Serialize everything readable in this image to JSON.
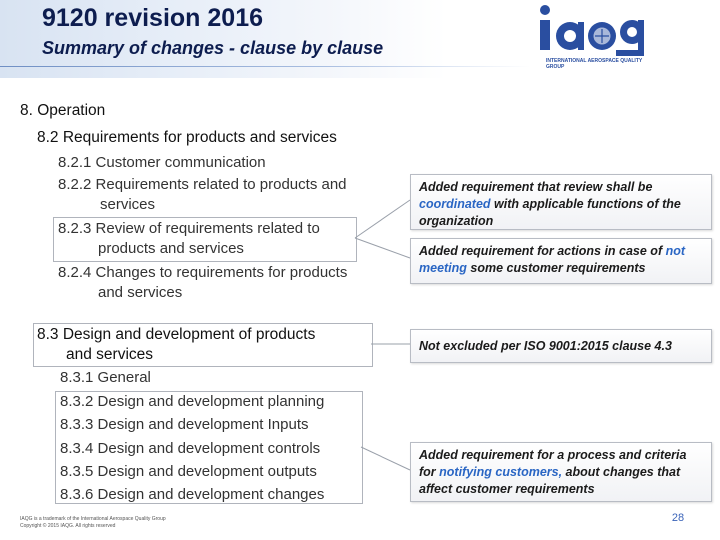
{
  "header": {
    "title": "9120 revision 2016",
    "subtitle": "Summary of changes - clause by clause"
  },
  "logo": {
    "text": "iaqg",
    "caption": "INTERNATIONAL AEROSPACE QUALITY GROUP"
  },
  "content": {
    "section": "8. Operation",
    "clause_8_2": {
      "heading": "8.2 Requirements for products and services",
      "items": [
        "8.2.1 Customer communication",
        "8.2.2 Requirements related to products and",
        "services",
        "8.2.3 Review of requirements related to",
        "products and services",
        "8.2.4 Changes to requirements for products",
        "and services"
      ]
    },
    "clause_8_3": {
      "heading_line1": "8.3 Design and development of products",
      "heading_line2": "and services",
      "items": [
        "8.3.1 General",
        "8.3.2 Design and development planning",
        "8.3.3 Design and development Inputs",
        "8.3.4 Design and development controls",
        "8.3.5 Design and development outputs",
        "8.3.6 Design and development changes"
      ]
    }
  },
  "callouts": {
    "review": {
      "pre": "Added requirement that review shall be ",
      "highlight": "coordinated",
      "post": " with applicable functions of the organization"
    },
    "changes": {
      "pre": "Added requirement for actions in case of ",
      "highlight": "not meeting",
      "post": " some customer requirements"
    },
    "design": {
      "text": "Not excluded per ISO 9001:2015 clause 4.3"
    },
    "notify": {
      "pre": "Added requirement for a process and criteria for ",
      "highlight": "notifying customers,",
      "post": " about changes that affect customer requirements"
    }
  },
  "footer": {
    "note_line1": "IAQG is a trademark of the International Aerospace Quality Group",
    "note_line2": "Copyright © 2015 IAQG. All rights reserved",
    "page_number": "28"
  },
  "colors": {
    "title": "#0d1d4f",
    "accent": "#2a66c4",
    "logo": "#2a4ea0"
  }
}
